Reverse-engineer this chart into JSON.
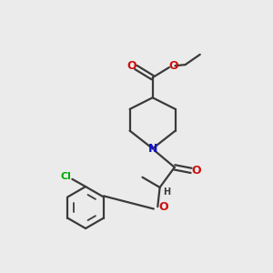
{
  "bg_color": "#ebebeb",
  "bond_color": "#3a3a3a",
  "N_color": "#1010cc",
  "O_color": "#cc1010",
  "Cl_color": "#00aa00",
  "H_color": "#3a3a3a",
  "figsize": [
    3.0,
    3.0
  ],
  "dpi": 100,
  "xlim": [
    0,
    10
  ],
  "ylim": [
    0,
    10
  ]
}
